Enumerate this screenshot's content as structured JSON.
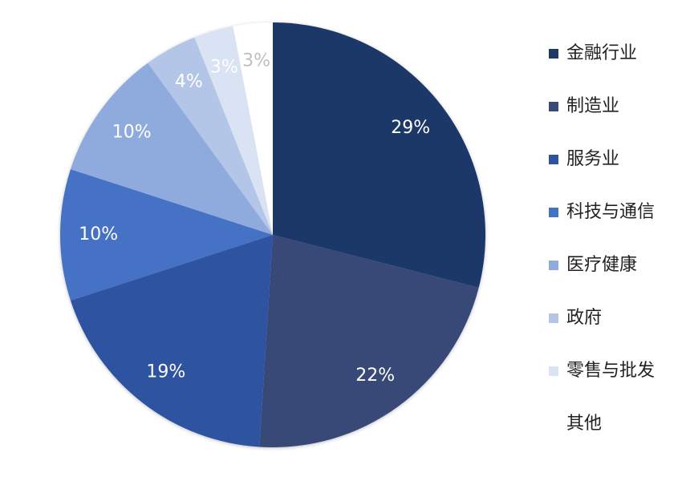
{
  "chart_data": {
    "type": "pie",
    "categories": [
      "金融行业",
      "制造业",
      "服务业",
      "科技与通信",
      "医疗健康",
      "政府",
      "零售与批发",
      "其他"
    ],
    "values": [
      29,
      22,
      19,
      10,
      10,
      4,
      3,
      3
    ],
    "value_labels": [
      "29%",
      "22%",
      "19%",
      "10%",
      "10%",
      "4%",
      "3%",
      "3%"
    ],
    "colors": [
      "#1f3869",
      "#374a78",
      "#2f52a0",
      "#4472c4",
      "#8faadc",
      "#b4c6e7",
      "#dae3f3",
      "#ffffff"
    ],
    "legend": "right"
  }
}
